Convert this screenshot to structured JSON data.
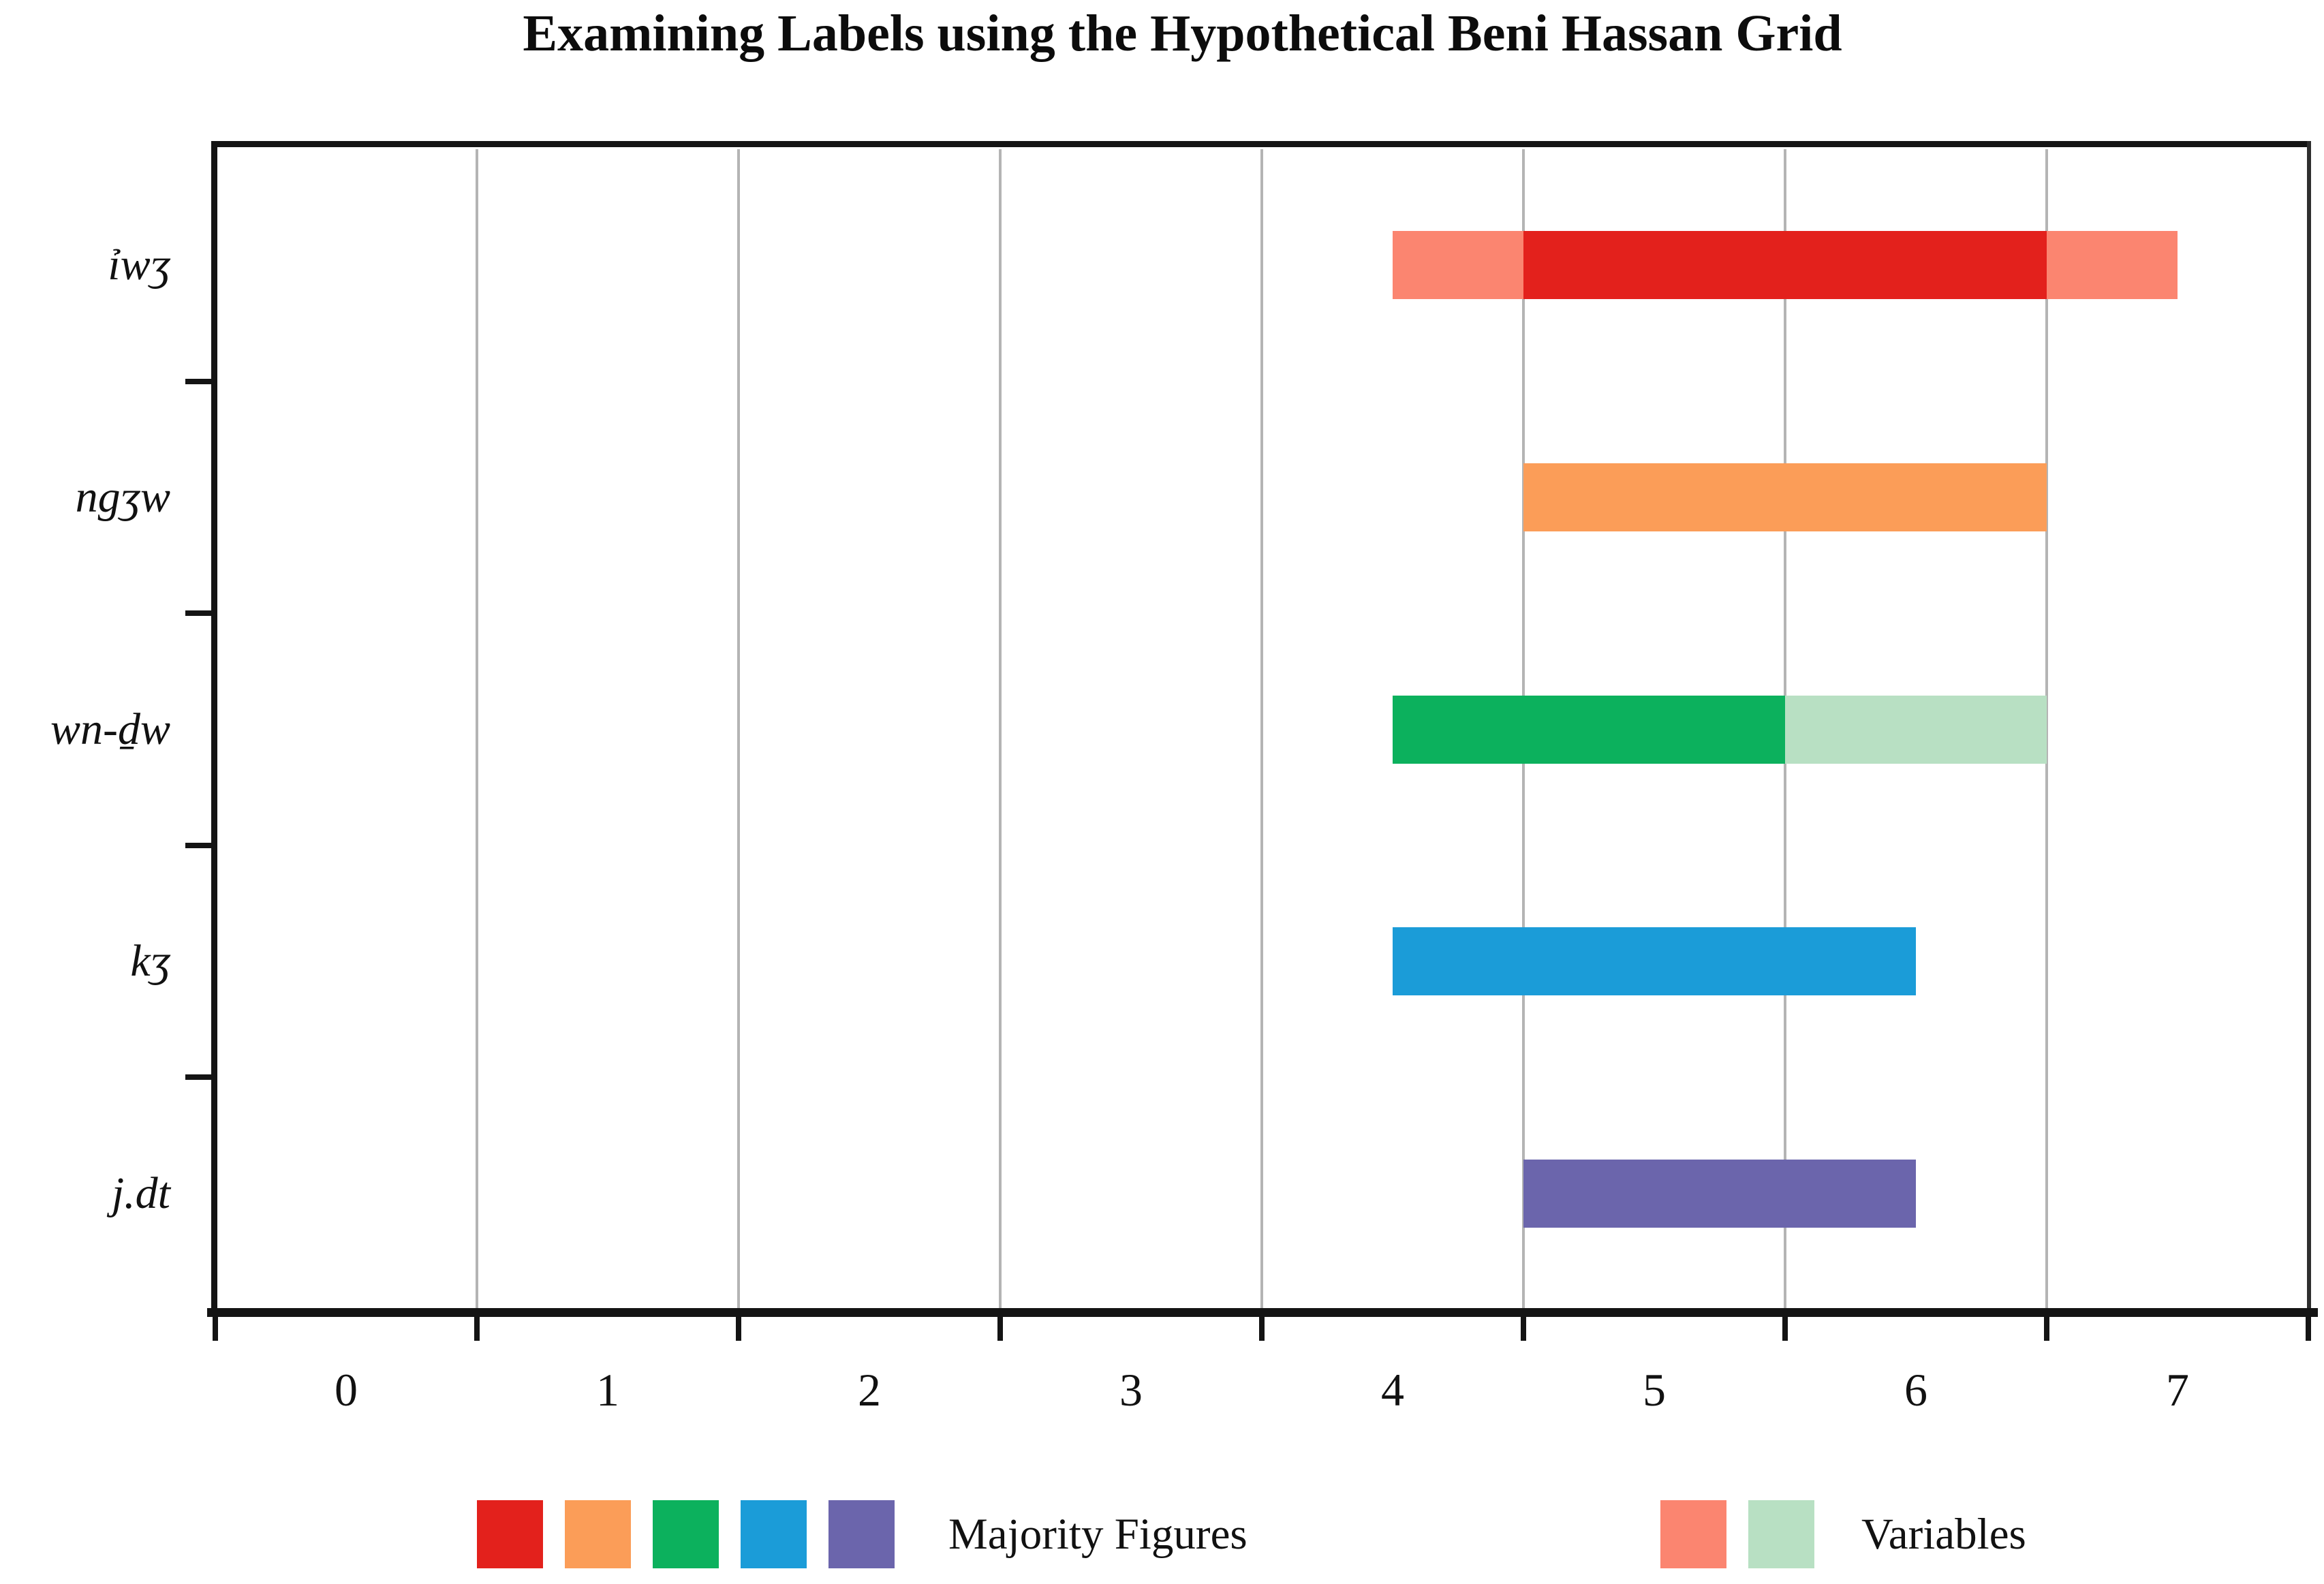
{
  "title": "Examining Labels using the Hypothetical Beni Hassan Grid",
  "chart_data": {
    "type": "bar",
    "orientation": "horizontal",
    "title": "Examining Labels using the Hypothetical Beni Hassan Grid",
    "x_axis": {
      "tick_labels": [
        "0",
        "1",
        "2",
        "3",
        "4",
        "5",
        "6",
        "7"
      ],
      "tick_label_values": [
        0,
        1,
        2,
        3,
        4,
        5,
        6,
        7
      ],
      "range": [
        -0.5,
        7.5
      ],
      "gridlines_at": [
        0.5,
        1.5,
        2.5,
        3.5,
        4.5,
        5.5,
        6.5
      ],
      "axis_tick_marks_at": [
        -0.5,
        0.5,
        1.5,
        2.5,
        3.5,
        4.5,
        5.5,
        6.5,
        7.5
      ],
      "grid": true
    },
    "categories": [
      "ỉwʒ",
      "ngʒw",
      "wn-ḏw",
      "kʒ",
      "j.dt"
    ],
    "rows": [
      {
        "label": "ỉwʒ",
        "segments": [
          {
            "from": 4.0,
            "to": 4.5,
            "role": "variable",
            "color": "#FB8570"
          },
          {
            "from": 4.5,
            "to": 6.5,
            "role": "majority",
            "color": "#E3211C"
          },
          {
            "from": 6.5,
            "to": 7.0,
            "role": "variable",
            "color": "#FB8570"
          }
        ]
      },
      {
        "label": "ngʒw",
        "segments": [
          {
            "from": 4.5,
            "to": 6.5,
            "role": "majority",
            "color": "#FB9D58"
          }
        ]
      },
      {
        "label": "wn-ḏw",
        "segments": [
          {
            "from": 4.0,
            "to": 5.5,
            "role": "majority",
            "color": "#0CB15D"
          },
          {
            "from": 5.5,
            "to": 6.5,
            "role": "variable",
            "color": "#B8E0C3"
          }
        ]
      },
      {
        "label": "kʒ",
        "segments": [
          {
            "from": 4.0,
            "to": 6.0,
            "role": "majority",
            "color": "#1B9CD8"
          }
        ]
      },
      {
        "label": "j.dt",
        "segments": [
          {
            "from": 4.5,
            "to": 6.0,
            "role": "majority",
            "color": "#6B65AC"
          }
        ]
      }
    ],
    "legend": {
      "position": "bottom",
      "majority": {
        "label": "Majority Figures",
        "swatches": [
          "#E3211C",
          "#FB9D58",
          "#0CB15D",
          "#1B9CD8",
          "#6B65AC"
        ]
      },
      "variables": {
        "label": "Variables",
        "swatches": [
          "#FB8570",
          "#B8E0C3"
        ]
      }
    },
    "colors": {
      "grid": "#b4b4b4",
      "axis": "#141414"
    }
  }
}
